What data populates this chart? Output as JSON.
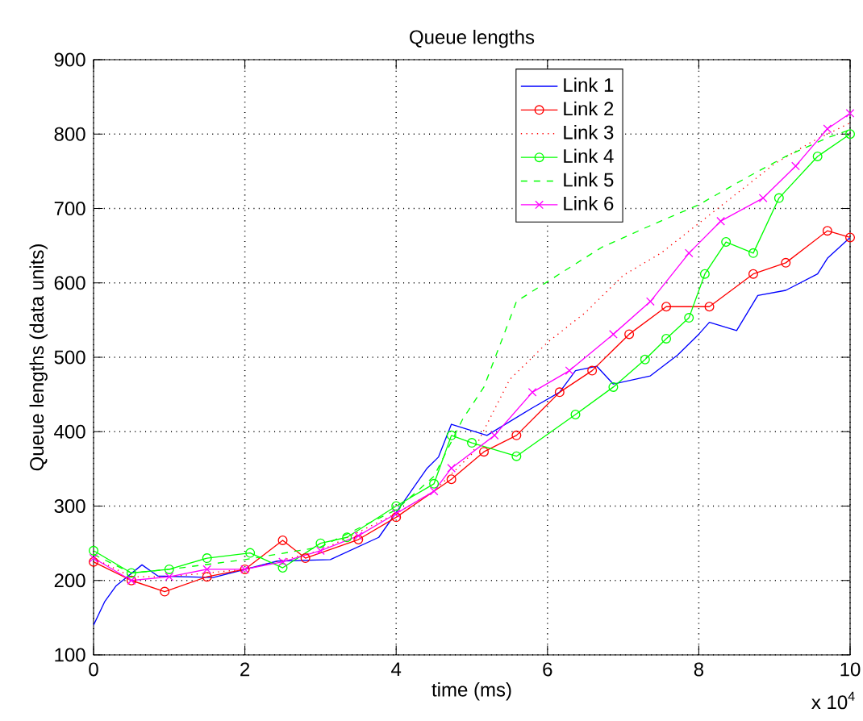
{
  "chart_data": {
    "type": "line",
    "title": "Queue lengths",
    "xlabel": "time (ms)",
    "ylabel": "Queue lengths (data units)",
    "xlim": [
      0,
      10
    ],
    "ylim": [
      100,
      900
    ],
    "xticks": [
      0,
      2,
      4,
      6,
      8,
      10
    ],
    "yticks": [
      100,
      200,
      300,
      400,
      500,
      600,
      700,
      800,
      900
    ],
    "grid": true,
    "legend": "top right",
    "annotations": [
      "x 10$^{4}$"
    ],
    "series": [
      {
        "name": "Link 1",
        "color": "#0000ff",
        "line_style": "solid",
        "marker": "none",
        "x": [
          0,
          0.15,
          0.3,
          0.64,
          0.85,
          1.58,
          2.43,
          3.13,
          3.77,
          4.41,
          4.56,
          4.73,
          5.2,
          5.8,
          6.16,
          6.37,
          6.65,
          6.87,
          7.36,
          7.72,
          8.0,
          8.14,
          8.5,
          8.78,
          9.15,
          9.57,
          9.7,
          10
        ],
        "values": [
          140,
          172,
          193,
          221,
          206,
          204,
          226,
          228,
          258,
          351,
          366,
          410,
          395,
          432,
          453,
          482,
          488,
          464,
          475,
          503,
          531,
          547,
          536,
          583,
          590,
          612,
          633,
          661
        ]
      },
      {
        "name": "Link 2",
        "color": "#ff0000",
        "line_style": "solid",
        "marker": "circle",
        "x": [
          0,
          0.5,
          0.94,
          1.5,
          2.0,
          2.5,
          2.8,
          3.5,
          4.0,
          4.73,
          5.16,
          5.59,
          6.16,
          6.59,
          7.08,
          7.57,
          8.14,
          8.72,
          9.15,
          9.7,
          10
        ],
        "values": [
          225,
          200,
          185,
          205,
          215,
          254,
          230,
          255,
          285,
          336,
          373,
          395,
          453,
          482,
          531,
          568,
          568,
          612,
          627,
          670,
          661
        ]
      },
      {
        "name": "Link 3",
        "color": "#ff0000",
        "line_style": "dotted",
        "marker": "none",
        "x": [
          0,
          0.5,
          1,
          2,
          3,
          4,
          4.5,
          5,
          5.5,
          6,
          6.5,
          7,
          7.5,
          8,
          8.5,
          9,
          9.5,
          10
        ],
        "values": [
          230,
          205,
          205,
          215,
          240,
          290,
          320,
          370,
          470,
          520,
          560,
          610,
          640,
          680,
          720,
          760,
          790,
          815
        ]
      },
      {
        "name": "Link 4",
        "color": "#00ff00",
        "line_style": "solid",
        "marker": "circle",
        "x": [
          0,
          0.5,
          1,
          1.5,
          2.07,
          2.5,
          3,
          3.35,
          4,
          4.5,
          4.73,
          5,
          5.59,
          6.37,
          6.87,
          7.29,
          7.57,
          7.87,
          8.08,
          8.36,
          8.72,
          9.06,
          9.57,
          10
        ],
        "values": [
          240,
          210,
          215,
          230,
          237,
          217,
          250,
          258,
          300,
          330,
          395,
          385,
          367,
          423,
          460,
          497,
          525,
          553,
          612,
          655,
          640,
          714,
          770,
          800
        ]
      },
      {
        "name": "Link 5",
        "color": "#00ff00",
        "line_style": "dashed",
        "marker": "none",
        "x": [
          0,
          0.5,
          1,
          2,
          3,
          4,
          4.5,
          4.88,
          5.16,
          5.59,
          6.16,
          6.72,
          7.36,
          8.0,
          8.64,
          9.15,
          9.7,
          10
        ],
        "values": [
          235,
          210,
          215,
          228,
          245,
          295,
          340,
          417,
          460,
          575,
          612,
          648,
          677,
          705,
          742,
          770,
          795,
          806
        ]
      },
      {
        "name": "Link 6",
        "color": "#ff00ff",
        "line_style": "solid",
        "marker": "cross",
        "x": [
          0,
          0.5,
          1,
          1.5,
          2,
          2.5,
          3,
          3.5,
          4,
          4.5,
          4.73,
          5.3,
          5.8,
          6.29,
          6.87,
          7.36,
          7.87,
          8.29,
          8.85,
          9.28,
          9.7,
          10
        ],
        "values": [
          230,
          200,
          205,
          215,
          215,
          225,
          240,
          260,
          290,
          320,
          351,
          395,
          453,
          482,
          531,
          575,
          640,
          683,
          714,
          757,
          807,
          828
        ]
      }
    ]
  }
}
